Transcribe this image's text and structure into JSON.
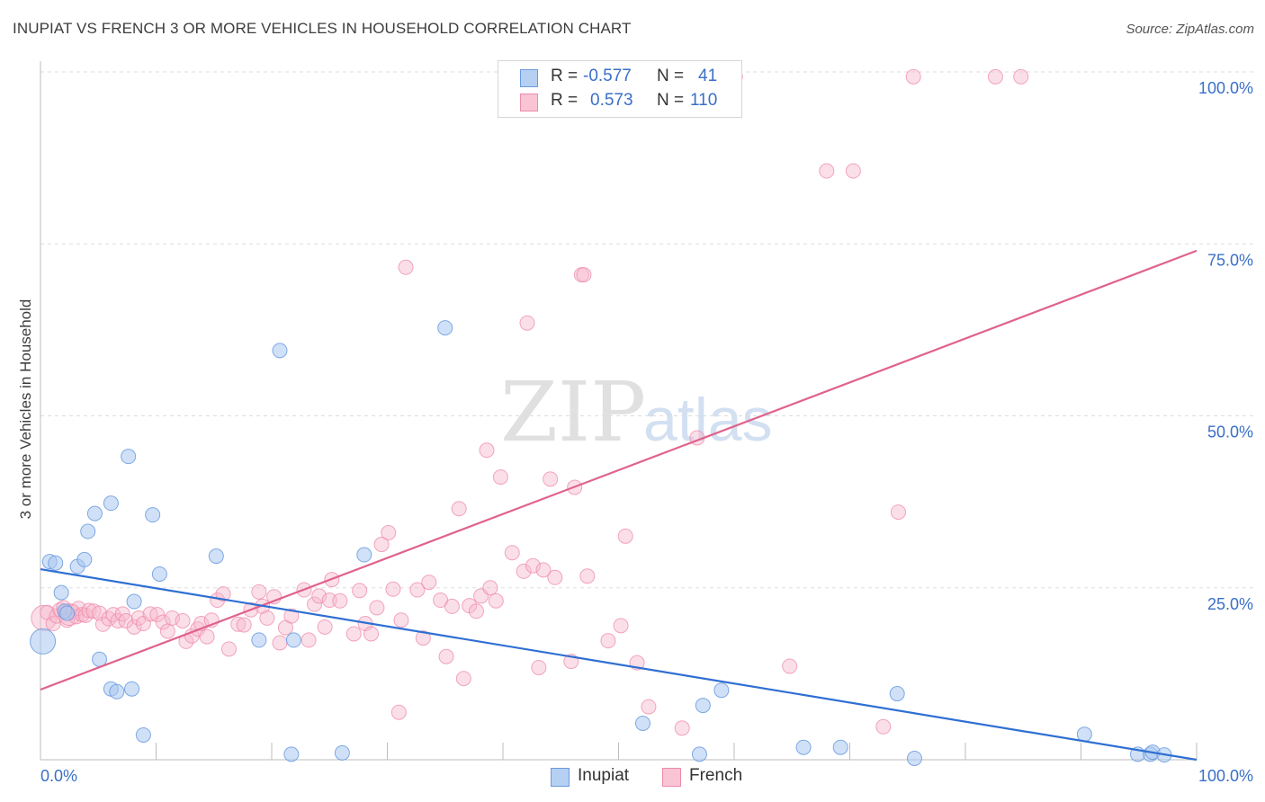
{
  "title": "INUPIAT VS FRENCH 3 OR MORE VEHICLES IN HOUSEHOLD CORRELATION CHART",
  "source": "Source: ZipAtlas.com",
  "watermark": {
    "zip": "ZIP",
    "atlas": "atlas"
  },
  "colors": {
    "inupiat_fill": "#a9c8f0",
    "inupiat_stroke": "#6a9be0",
    "inupiat_line": "#2f6fd2",
    "french_fill": "#f7b8cb",
    "french_stroke": "#ee8aaa",
    "french_line": "#e0628d",
    "tick_label": "#3a6fc8"
  },
  "legend": {
    "rows": [
      {
        "r_label": "R =",
        "r_value": "-0.577",
        "n_label": "N =",
        "n_value": "41"
      },
      {
        "r_label": "R =",
        "r_value": "0.573",
        "n_label": "N =",
        "n_value": "110"
      }
    ]
  },
  "bottom_legend": {
    "inupiat": "Inupiat",
    "french": "French"
  },
  "chart_data": {
    "type": "scatter",
    "title": "INUPIAT VS FRENCH 3 OR MORE VEHICLES IN HOUSEHOLD CORRELATION CHART",
    "xlabel": "",
    "ylabel": "3 or more Vehicles in Household",
    "xlim": [
      0,
      100
    ],
    "ylim": [
      0,
      100
    ],
    "x_tick_labels": [
      "0.0%",
      "100.0%"
    ],
    "y_ticks": [
      25,
      50,
      75,
      100
    ],
    "y_tick_labels": [
      "25.0%",
      "50.0%",
      "75.0%",
      "100.0%"
    ],
    "grid": true,
    "series": [
      {
        "name": "Inupiat",
        "r": -0.577,
        "n": 41,
        "trend": {
          "x": [
            0,
            100
          ],
          "y": [
            27.7,
            -0.9
          ]
        },
        "points": [
          {
            "x": 0.2,
            "y": 17.2,
            "s": 14
          },
          {
            "x": 0.8,
            "y": 28.8
          },
          {
            "x": 1.3,
            "y": 28.6
          },
          {
            "x": 1.8,
            "y": 24.3
          },
          {
            "x": 2.1,
            "y": 21.6
          },
          {
            "x": 2.3,
            "y": 21.3
          },
          {
            "x": 3.2,
            "y": 28.1
          },
          {
            "x": 3.8,
            "y": 29.1
          },
          {
            "x": 4.1,
            "y": 33.2
          },
          {
            "x": 4.7,
            "y": 35.8
          },
          {
            "x": 5.1,
            "y": 14.6
          },
          {
            "x": 6.1,
            "y": 37.3
          },
          {
            "x": 6.1,
            "y": 10.3
          },
          {
            "x": 6.6,
            "y": 9.9
          },
          {
            "x": 7.6,
            "y": 44.1
          },
          {
            "x": 7.9,
            "y": 10.3
          },
          {
            "x": 8.1,
            "y": 23.0
          },
          {
            "x": 8.9,
            "y": 3.6
          },
          {
            "x": 9.7,
            "y": 35.6
          },
          {
            "x": 10.3,
            "y": 27.0
          },
          {
            "x": 15.2,
            "y": 29.6
          },
          {
            "x": 18.9,
            "y": 17.4
          },
          {
            "x": 20.7,
            "y": 59.5
          },
          {
            "x": 21.7,
            "y": 0.8
          },
          {
            "x": 21.9,
            "y": 17.4
          },
          {
            "x": 26.1,
            "y": 1.0
          },
          {
            "x": 28.0,
            "y": 29.8
          },
          {
            "x": 35.0,
            "y": 62.8
          },
          {
            "x": 52.1,
            "y": 5.3
          },
          {
            "x": 57.0,
            "y": 0.8
          },
          {
            "x": 57.3,
            "y": 7.9
          },
          {
            "x": 58.9,
            "y": 10.1
          },
          {
            "x": 66.0,
            "y": 1.8
          },
          {
            "x": 69.2,
            "y": 1.8
          },
          {
            "x": 74.1,
            "y": 9.6
          },
          {
            "x": 75.6,
            "y": 0.2
          },
          {
            "x": 90.3,
            "y": 3.7
          },
          {
            "x": 94.9,
            "y": 0.8
          },
          {
            "x": 96.0,
            "y": 0.8
          },
          {
            "x": 96.2,
            "y": 1.1
          },
          {
            "x": 97.2,
            "y": 0.7
          }
        ]
      },
      {
        "name": "French",
        "r": 0.573,
        "n": 110,
        "trend": {
          "x": [
            0,
            100
          ],
          "y": [
            10.2,
            74.0
          ]
        },
        "points": [
          {
            "x": 0.3,
            "y": 20.6,
            "s": 14
          },
          {
            "x": 0.6,
            "y": 21.4
          },
          {
            "x": 1.1,
            "y": 19.8
          },
          {
            "x": 1.4,
            "y": 20.9
          },
          {
            "x": 1.7,
            "y": 21.8
          },
          {
            "x": 2.0,
            "y": 22.1
          },
          {
            "x": 2.3,
            "y": 20.3
          },
          {
            "x": 2.5,
            "y": 21.1,
            "s": 12
          },
          {
            "x": 2.8,
            "y": 21.5
          },
          {
            "x": 3.1,
            "y": 20.8
          },
          {
            "x": 3.3,
            "y": 22.0
          },
          {
            "x": 3.6,
            "y": 21.1
          },
          {
            "x": 3.9,
            "y": 21.0
          },
          {
            "x": 4.2,
            "y": 21.7
          },
          {
            "x": 4.6,
            "y": 21.6
          },
          {
            "x": 5.1,
            "y": 21.3
          },
          {
            "x": 5.4,
            "y": 19.7
          },
          {
            "x": 5.9,
            "y": 20.5
          },
          {
            "x": 6.3,
            "y": 21.1
          },
          {
            "x": 6.7,
            "y": 20.2
          },
          {
            "x": 7.1,
            "y": 21.2
          },
          {
            "x": 7.4,
            "y": 20.2
          },
          {
            "x": 8.1,
            "y": 19.3
          },
          {
            "x": 8.5,
            "y": 20.6
          },
          {
            "x": 8.9,
            "y": 19.8
          },
          {
            "x": 9.5,
            "y": 21.2
          },
          {
            "x": 10.1,
            "y": 21.1
          },
          {
            "x": 10.6,
            "y": 20.0
          },
          {
            "x": 11.0,
            "y": 18.7
          },
          {
            "x": 11.4,
            "y": 20.6
          },
          {
            "x": 12.3,
            "y": 20.2
          },
          {
            "x": 12.6,
            "y": 17.2
          },
          {
            "x": 13.1,
            "y": 18.0
          },
          {
            "x": 13.6,
            "y": 19.0
          },
          {
            "x": 13.9,
            "y": 19.8
          },
          {
            "x": 14.4,
            "y": 17.9
          },
          {
            "x": 14.8,
            "y": 20.3
          },
          {
            "x": 15.3,
            "y": 23.2
          },
          {
            "x": 15.8,
            "y": 24.1
          },
          {
            "x": 16.3,
            "y": 16.1
          },
          {
            "x": 17.1,
            "y": 19.7
          },
          {
            "x": 17.6,
            "y": 19.6
          },
          {
            "x": 18.2,
            "y": 21.8
          },
          {
            "x": 18.9,
            "y": 24.4
          },
          {
            "x": 19.2,
            "y": 22.3
          },
          {
            "x": 19.6,
            "y": 20.6
          },
          {
            "x": 20.2,
            "y": 23.7
          },
          {
            "x": 20.7,
            "y": 17.0
          },
          {
            "x": 21.2,
            "y": 19.2
          },
          {
            "x": 21.7,
            "y": 20.9
          },
          {
            "x": 22.8,
            "y": 24.7
          },
          {
            "x": 23.2,
            "y": 17.4
          },
          {
            "x": 23.7,
            "y": 22.6
          },
          {
            "x": 24.1,
            "y": 23.8
          },
          {
            "x": 24.6,
            "y": 19.3
          },
          {
            "x": 25.0,
            "y": 23.2
          },
          {
            "x": 25.2,
            "y": 26.2
          },
          {
            "x": 25.9,
            "y": 23.1
          },
          {
            "x": 27.1,
            "y": 18.3
          },
          {
            "x": 27.6,
            "y": 24.6
          },
          {
            "x": 28.1,
            "y": 19.8
          },
          {
            "x": 28.6,
            "y": 18.3
          },
          {
            "x": 29.1,
            "y": 22.1
          },
          {
            "x": 29.5,
            "y": 31.3
          },
          {
            "x": 30.1,
            "y": 33.0
          },
          {
            "x": 30.5,
            "y": 24.8
          },
          {
            "x": 31.2,
            "y": 20.3
          },
          {
            "x": 31.6,
            "y": 71.6
          },
          {
            "x": 32.6,
            "y": 24.7
          },
          {
            "x": 33.1,
            "y": 17.7
          },
          {
            "x": 33.6,
            "y": 25.8
          },
          {
            "x": 34.6,
            "y": 23.2
          },
          {
            "x": 35.1,
            "y": 15.0
          },
          {
            "x": 35.6,
            "y": 22.3
          },
          {
            "x": 36.2,
            "y": 36.5
          },
          {
            "x": 36.6,
            "y": 11.8
          },
          {
            "x": 37.1,
            "y": 22.4
          },
          {
            "x": 37.7,
            "y": 21.6
          },
          {
            "x": 38.1,
            "y": 23.8
          },
          {
            "x": 38.6,
            "y": 45.0
          },
          {
            "x": 38.9,
            "y": 25.0
          },
          {
            "x": 39.4,
            "y": 23.1
          },
          {
            "x": 31.0,
            "y": 6.9
          },
          {
            "x": 39.8,
            "y": 41.1
          },
          {
            "x": 40.8,
            "y": 30.1
          },
          {
            "x": 41.8,
            "y": 27.4
          },
          {
            "x": 42.1,
            "y": 63.5
          },
          {
            "x": 42.6,
            "y": 28.2
          },
          {
            "x": 43.1,
            "y": 13.4
          },
          {
            "x": 43.5,
            "y": 27.6
          },
          {
            "x": 44.1,
            "y": 40.8
          },
          {
            "x": 44.5,
            "y": 26.5
          },
          {
            "x": 45.9,
            "y": 14.3
          },
          {
            "x": 46.2,
            "y": 39.6
          },
          {
            "x": 46.8,
            "y": 70.5
          },
          {
            "x": 47.0,
            "y": 70.5
          },
          {
            "x": 47.3,
            "y": 26.7
          },
          {
            "x": 49.1,
            "y": 17.3
          },
          {
            "x": 50.2,
            "y": 19.5
          },
          {
            "x": 50.6,
            "y": 32.5
          },
          {
            "x": 51.6,
            "y": 14.1
          },
          {
            "x": 52.6,
            "y": 7.7
          },
          {
            "x": 55.5,
            "y": 4.6
          },
          {
            "x": 56.8,
            "y": 46.8
          },
          {
            "x": 60.1,
            "y": 99.3
          },
          {
            "x": 64.8,
            "y": 13.6
          },
          {
            "x": 68.0,
            "y": 85.6
          },
          {
            "x": 70.3,
            "y": 85.6
          },
          {
            "x": 72.9,
            "y": 4.8
          },
          {
            "x": 74.2,
            "y": 36.0
          },
          {
            "x": 75.5,
            "y": 99.3
          },
          {
            "x": 82.6,
            "y": 99.3
          },
          {
            "x": 84.8,
            "y": 99.3
          }
        ]
      }
    ]
  }
}
